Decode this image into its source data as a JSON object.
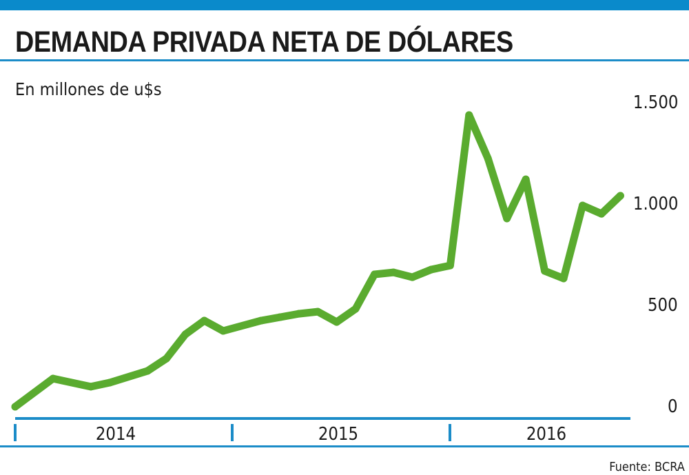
{
  "header": {
    "title": "DEMANDA PRIVADA NETA DE DÓLARES",
    "subtitle": "En millones de u$s"
  },
  "footer": {
    "source": "Fuente: BCRA"
  },
  "colors": {
    "accent_blue": "#0a8acb",
    "rule_blue": "#1b8cc8",
    "line_green": "#5aab2f",
    "text": "#1a1a1a"
  },
  "chart_data": {
    "type": "line",
    "title": "DEMANDA PRIVADA NETA DE DÓLARES",
    "subtitle": "En millones de u$s",
    "xlabel": "",
    "ylabel": "En millones de u$s",
    "x_unit": "month index from Jan 2014",
    "xlim": [
      0,
      32
    ],
    "ylim": [
      0,
      1500
    ],
    "grid": false,
    "legend": "none",
    "yticks": [
      {
        "value": 0,
        "label": "0"
      },
      {
        "value": 500,
        "label": "500"
      },
      {
        "value": 1000,
        "label": "1.000"
      },
      {
        "value": 1500,
        "label": "1.500"
      }
    ],
    "xticks": [
      {
        "label": "2014"
      },
      {
        "label": "2015"
      },
      {
        "label": "2016"
      }
    ],
    "series": [
      {
        "name": "Demanda privada neta",
        "x": [
          0,
          2,
          4,
          5,
          7,
          8,
          9,
          10,
          11,
          13,
          14,
          15,
          16,
          17,
          18,
          19,
          20,
          21,
          22,
          23,
          24,
          25,
          26,
          27,
          28,
          29,
          30,
          31,
          32
        ],
        "values": [
          0,
          139,
          99,
          119,
          177,
          238,
          357,
          425,
          374,
          425,
          442,
          459,
          469,
          418,
          483,
          653,
          663,
          639,
          677,
          697,
          1439,
          1224,
          929,
          1122,
          670,
          633,
          993,
          952,
          1041
        ]
      }
    ],
    "source": "Fuente: BCRA"
  }
}
